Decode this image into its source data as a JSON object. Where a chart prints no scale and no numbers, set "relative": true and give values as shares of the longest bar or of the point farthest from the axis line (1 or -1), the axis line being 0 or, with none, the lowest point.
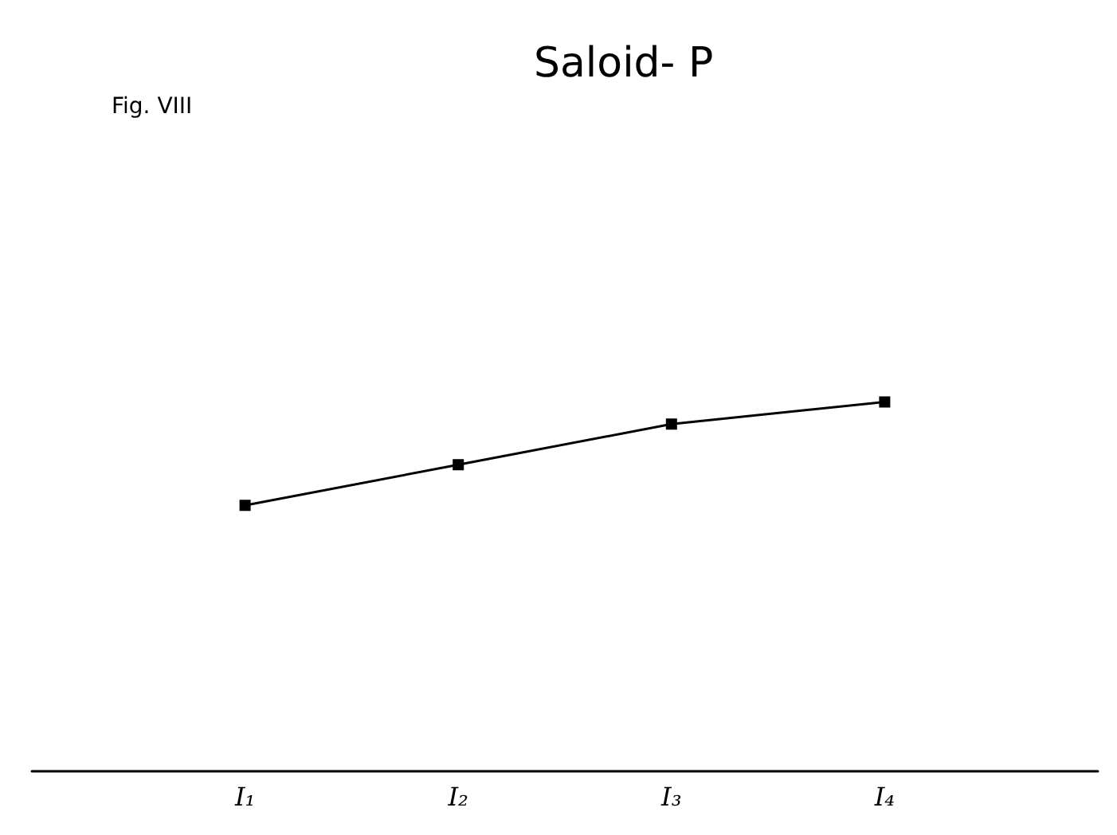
{
  "chart_data": {
    "type": "line",
    "title": "Saloid- P",
    "annotations": [
      "Fig. VIII"
    ],
    "categories": [
      "I₁",
      "I₂",
      "I₃",
      "I₄"
    ],
    "series": [
      {
        "color": "#000000",
        "values": [
          0.72,
          0.83,
          0.94,
          1
        ]
      }
    ],
    "relative": true,
    "grid": false,
    "marker": "square",
    "line_style": "solid"
  }
}
